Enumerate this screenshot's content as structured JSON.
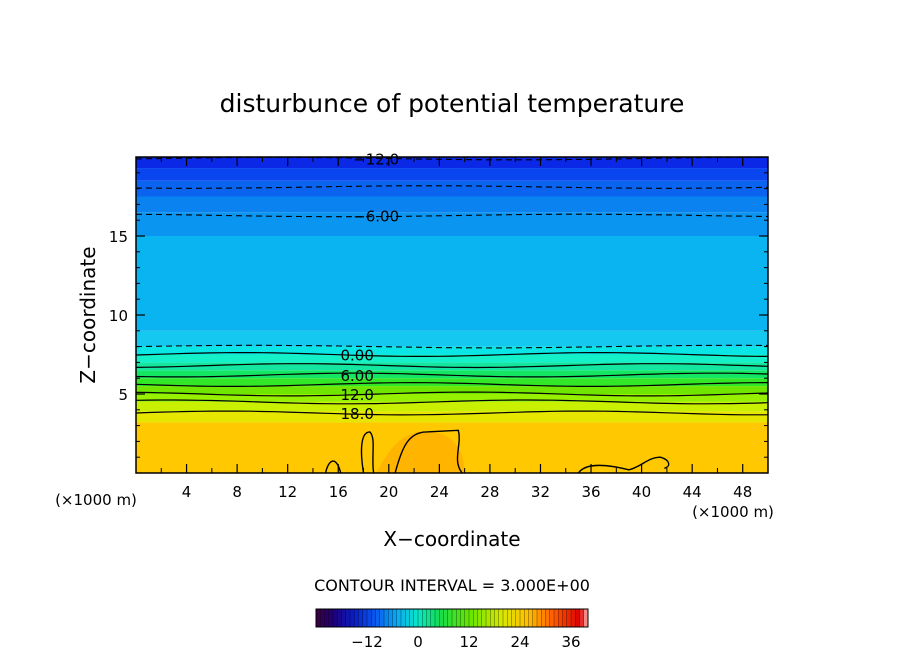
{
  "chart_data": {
    "type": "contour",
    "title": "disturbunce of potential temperature",
    "xlabel": "X−coordinate",
    "ylabel": "Z−coordinate",
    "x_unit_label": "(×1000 m)",
    "y_unit_label": "(×1000 m)",
    "xlim": [
      0,
      50
    ],
    "ylim": [
      0,
      20
    ],
    "x_ticks": [
      4,
      8,
      12,
      16,
      20,
      24,
      28,
      32,
      36,
      40,
      44,
      48
    ],
    "y_ticks": [
      5,
      10,
      15
    ],
    "contour_interval_label": "CONTOUR INTERVAL = 3.000E+00",
    "contour_interval": 3.0,
    "contour_labels": [
      {
        "text": "−12.0",
        "value": -12,
        "z": 19.9,
        "x": 19
      },
      {
        "text": "−6.00",
        "value": -6,
        "z": 16.3,
        "x": 19
      },
      {
        "text": "0.00",
        "value": 0,
        "z": 7.5,
        "x": 17.5
      },
      {
        "text": "6.00",
        "value": 6,
        "z": 6.2,
        "x": 17.5
      },
      {
        "text": "12.0",
        "value": 12,
        "z": 5.0,
        "x": 17.5
      },
      {
        "text": "18.0",
        "value": 18,
        "z": 3.8,
        "x": 17.5
      }
    ],
    "bands": [
      {
        "z0": 0,
        "z1": 3.2,
        "value": 28,
        "color": "#ffc800"
      },
      {
        "z0": 3.2,
        "z1": 3.9,
        "value": 21,
        "color": "#e6e600"
      },
      {
        "z0": 3.9,
        "z1": 4.5,
        "value": 18,
        "color": "#c8f000"
      },
      {
        "z0": 4.5,
        "z1": 5.0,
        "value": 15,
        "color": "#96f000"
      },
      {
        "z0": 5.0,
        "z1": 5.5,
        "value": 12,
        "color": "#6ee600"
      },
      {
        "z0": 5.5,
        "z1": 6.0,
        "value": 9,
        "color": "#32e628"
      },
      {
        "z0": 6.0,
        "z1": 6.5,
        "value": 6,
        "color": "#14e664"
      },
      {
        "z0": 6.5,
        "z1": 7.0,
        "value": 3,
        "color": "#14e6a0"
      },
      {
        "z0": 7.0,
        "z1": 7.5,
        "value": 1,
        "color": "#14f0c8"
      },
      {
        "z0": 7.5,
        "z1": 8.0,
        "value": 0,
        "color": "#0ae6e6"
      },
      {
        "z0": 8.0,
        "z1": 9.0,
        "value": -2,
        "color": "#14c8f0"
      },
      {
        "z0": 9.0,
        "z1": 15.0,
        "value": -3,
        "color": "#0ab4f0"
      },
      {
        "z0": 15.0,
        "z1": 16.5,
        "value": -5,
        "color": "#0a96f0"
      },
      {
        "z0": 16.5,
        "z1": 17.5,
        "value": -7,
        "color": "#0a82f0"
      },
      {
        "z0": 17.5,
        "z1": 18.5,
        "value": -9,
        "color": "#0a64f0"
      },
      {
        "z0": 18.5,
        "z1": 19.3,
        "value": -11,
        "color": "#0a46f0"
      },
      {
        "z0": 19.3,
        "z1": 20.0,
        "value": -13,
        "color": "#0a28e6"
      }
    ],
    "solid_contours_z": [
      3.8,
      4.5,
      5.0,
      5.6,
      6.2,
      6.8,
      7.5
    ],
    "dashed_contours_z": [
      8.0,
      16.3,
      18.1,
      19.9
    ],
    "colorbar": {
      "min": -24,
      "max": 40,
      "ticks": [
        -12,
        0,
        12,
        24,
        36
      ],
      "tick_labels": [
        "−12",
        "0",
        "12",
        "24",
        "36"
      ]
    }
  }
}
